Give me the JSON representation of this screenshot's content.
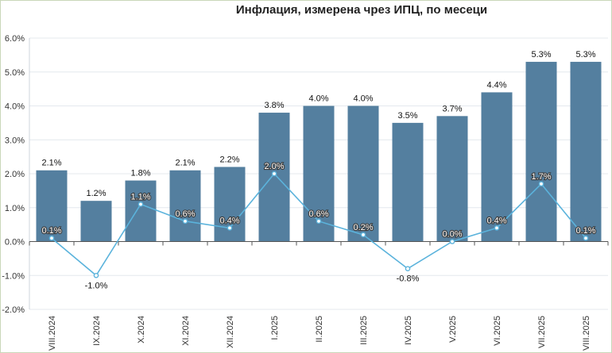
{
  "chart_data": {
    "type": "bar",
    "title": "Инфлация, измерена чрез ИПЦ, по месеци",
    "categories": [
      "VIII.2024",
      "IX.2024",
      "X.2024",
      "XI.2024",
      "XII.2024",
      "I.2025",
      "II.2025",
      "III.2025",
      "IV.2025",
      "V.2025",
      "VI.2025",
      "VII.2025",
      "VIII.2025"
    ],
    "series": [
      {
        "type": "bar",
        "color": "#547f9f",
        "values": [
          2.1,
          1.2,
          1.8,
          2.1,
          2.2,
          3.8,
          4.0,
          4.0,
          3.5,
          3.7,
          4.4,
          5.3,
          5.3
        ],
        "labels": [
          "2.1%",
          "1.2%",
          "1.8%",
          "2.1%",
          "2.2%",
          "3.8%",
          "4.0%",
          "4.0%",
          "3.5%",
          "3.7%",
          "4.4%",
          "5.3%",
          "5.3%"
        ]
      },
      {
        "type": "line",
        "color": "#5bb3dc",
        "values": [
          0.1,
          -1.0,
          1.1,
          0.6,
          0.4,
          2.0,
          0.6,
          0.2,
          -0.8,
          0.0,
          0.4,
          1.7,
          0.1
        ],
        "labels": [
          "0.1%",
          "-1.0%",
          "1.1%",
          "0.6%",
          "0.4%",
          "2.0%",
          "0.6%",
          "0.2%",
          "-0.8%",
          "0.0%",
          "0.4%",
          "1.7%",
          "0.1%"
        ]
      }
    ],
    "yticks": [
      "-2.0%",
      "-1.0%",
      "0.0%",
      "1.0%",
      "2.0%",
      "3.0%",
      "4.0%",
      "5.0%",
      "6.0%"
    ],
    "ylim": [
      -2,
      6
    ],
    "grid": true
  }
}
